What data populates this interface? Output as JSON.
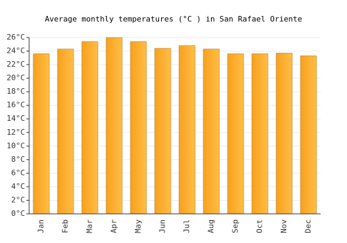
{
  "chart_data": {
    "type": "bar",
    "title": "Average monthly temperatures (°C ) in San Rafael Oriente",
    "categories": [
      "Jan",
      "Feb",
      "Mar",
      "Apr",
      "May",
      "Jun",
      "Jul",
      "Aug",
      "Sep",
      "Oct",
      "Nov",
      "Dec"
    ],
    "values": [
      23.6,
      24.3,
      25.4,
      26.0,
      25.4,
      24.4,
      24.8,
      24.3,
      23.6,
      23.6,
      23.7,
      23.3
    ],
    "color": "#f8a11e",
    "ylim": [
      0,
      26
    ],
    "yticks": [
      {
        "value": 0,
        "label": "0°C"
      },
      {
        "value": 2,
        "label": "2°C"
      },
      {
        "value": 4,
        "label": "4°C"
      },
      {
        "value": 6,
        "label": "6°C"
      },
      {
        "value": 8,
        "label": "8°C"
      },
      {
        "value": 10,
        "label": "10°C"
      },
      {
        "value": 12,
        "label": "12°C"
      },
      {
        "value": 14,
        "label": "14°C"
      },
      {
        "value": 16,
        "label": "16°C"
      },
      {
        "value": 18,
        "label": "18°C"
      },
      {
        "value": 20,
        "label": "20°C"
      },
      {
        "value": 22,
        "label": "22°C"
      },
      {
        "value": 24,
        "label": "24°C"
      },
      {
        "value": 26,
        "label": "26°C"
      }
    ],
    "grid": true
  }
}
